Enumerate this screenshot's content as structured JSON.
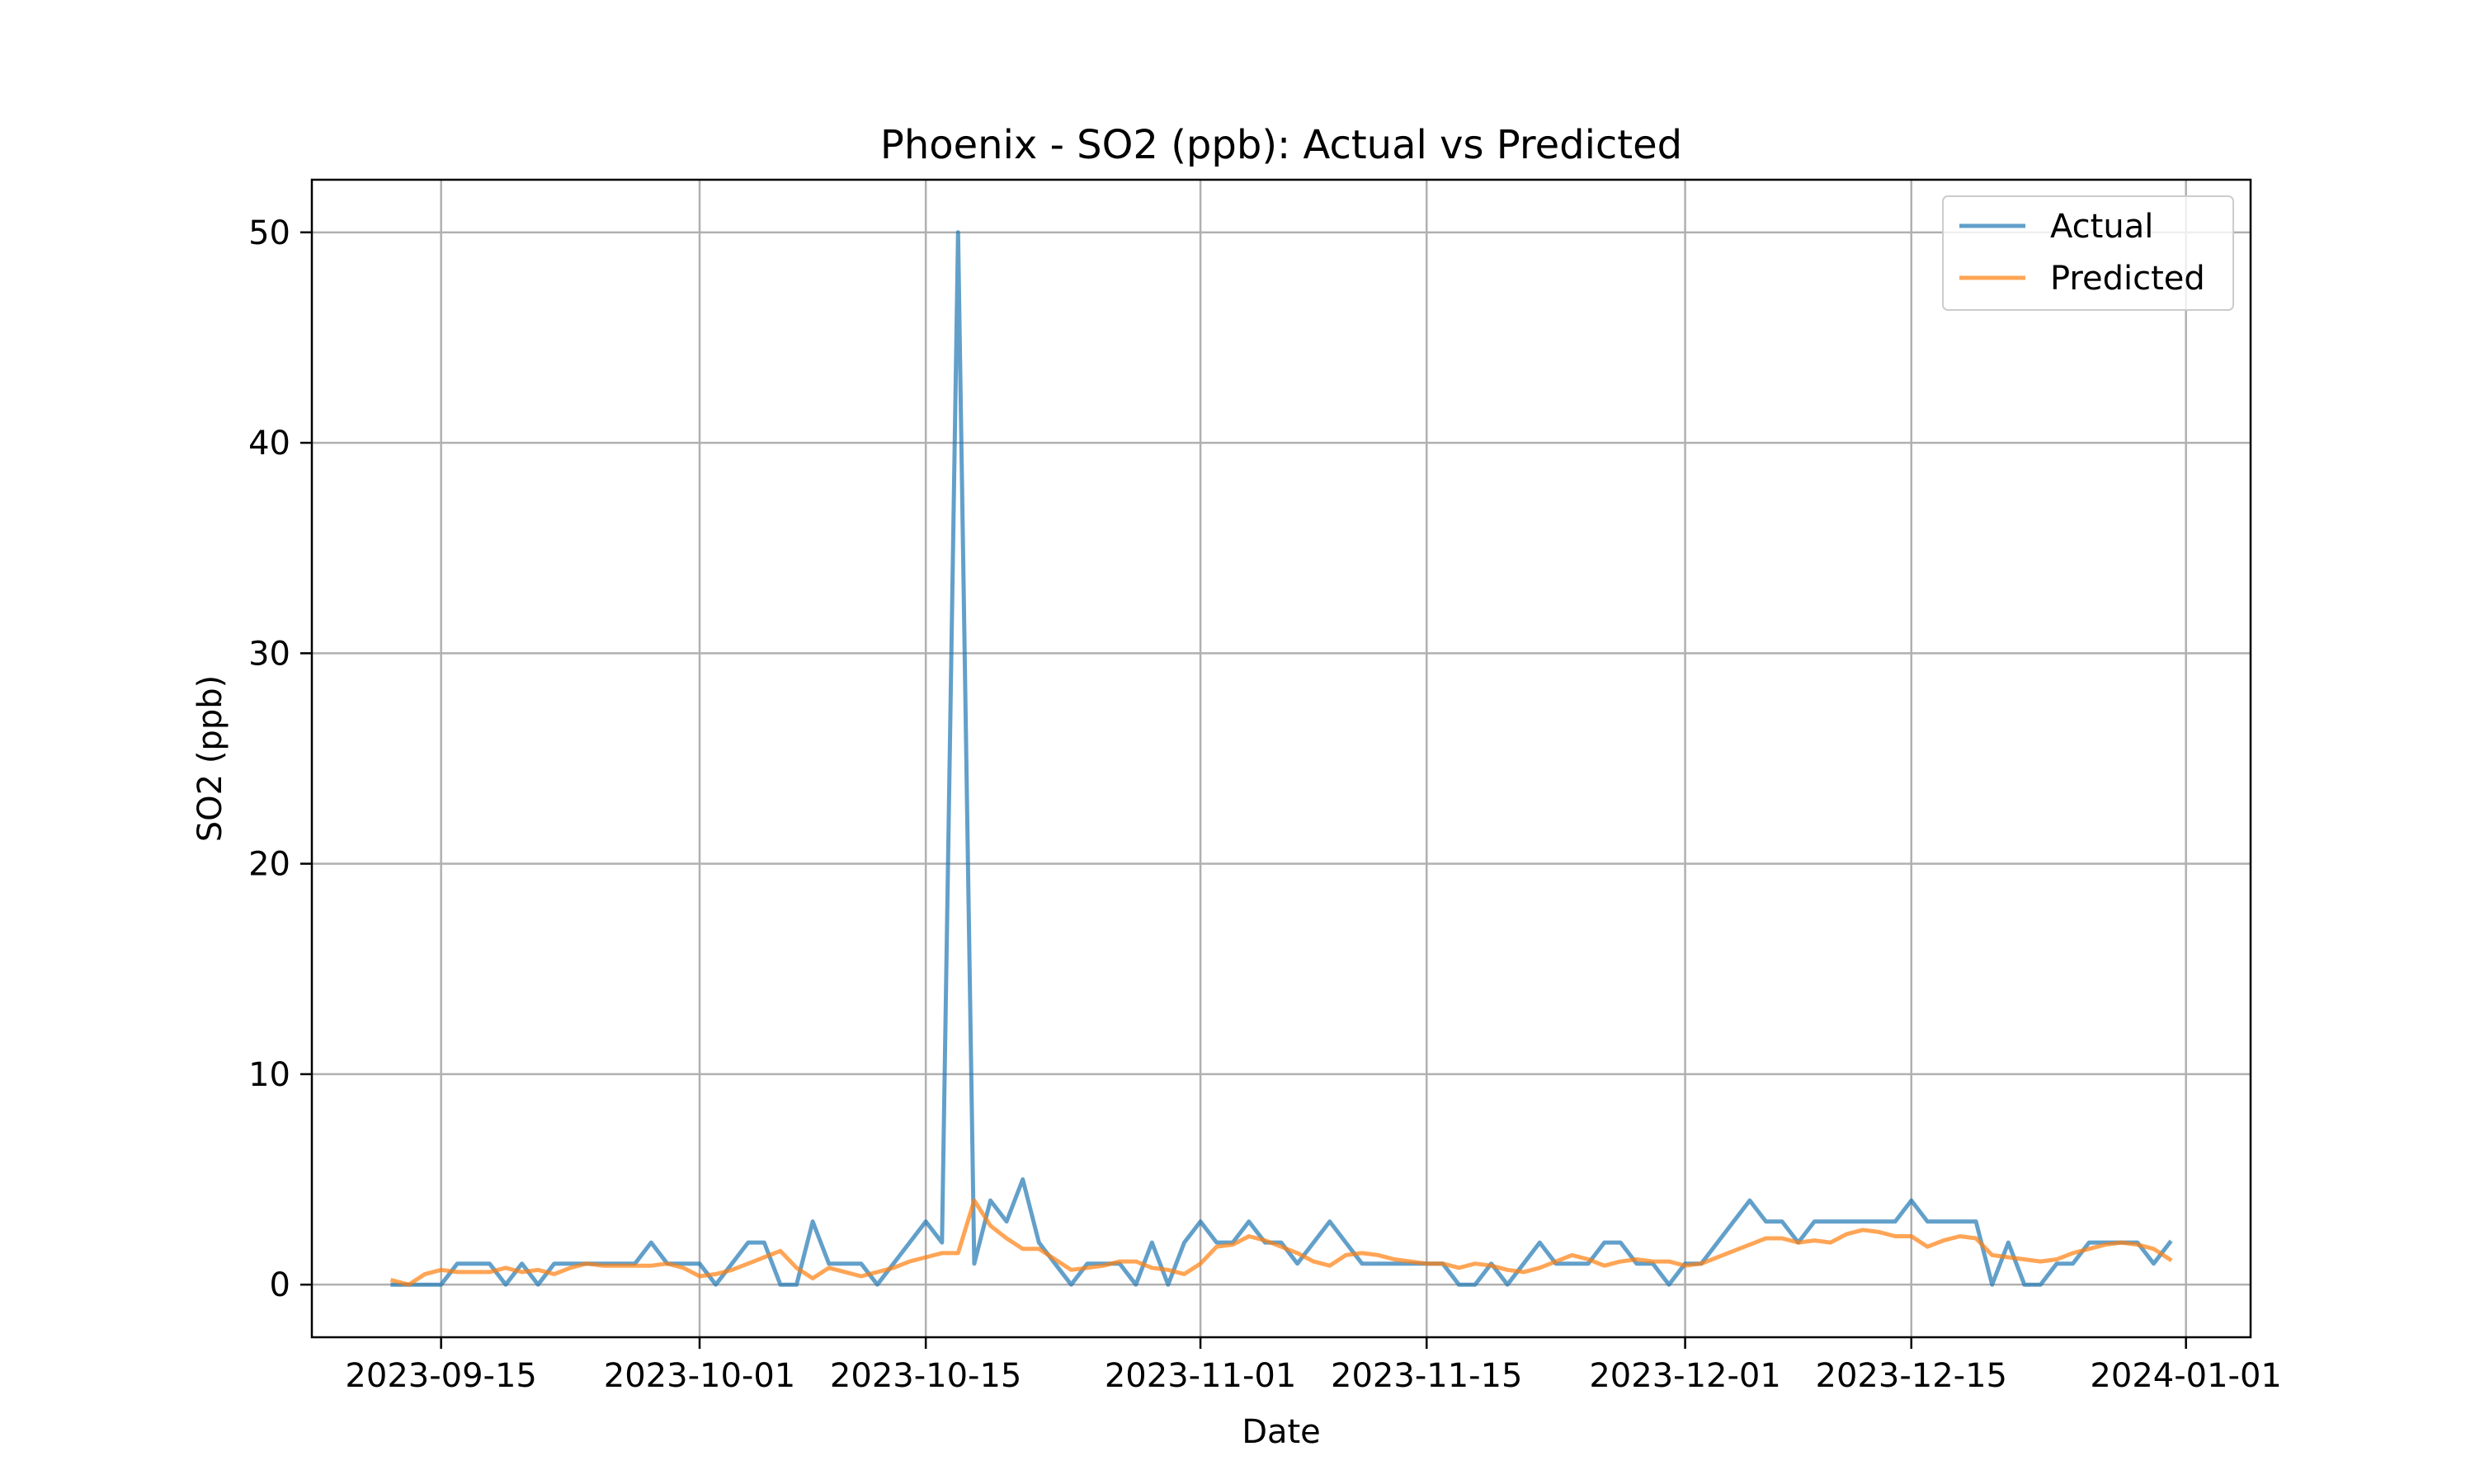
{
  "chart_data": {
    "type": "line",
    "title": "Phoenix - SO2 (ppb): Actual vs Predicted",
    "xlabel": "Date",
    "ylabel": "SO2 (ppb)",
    "x_start": "2023-09-12",
    "x_step_days": 1,
    "xlim": [
      "2023-09-07",
      "2024-01-05"
    ],
    "ylim": [
      -2.5,
      52.5
    ],
    "x_ticks": [
      "2023-09-15",
      "2023-10-01",
      "2023-10-15",
      "2023-11-01",
      "2023-11-15",
      "2023-12-01",
      "2023-12-15",
      "2024-01-01"
    ],
    "y_ticks": [
      0,
      10,
      20,
      30,
      40,
      50
    ],
    "grid": true,
    "legend_position": "top-right",
    "series": [
      {
        "name": "Actual",
        "color": "#1f77b4",
        "values": [
          0,
          0,
          0,
          0,
          1,
          1,
          1,
          0,
          1,
          0,
          1,
          1,
          1,
          1,
          1,
          1,
          2,
          1,
          1,
          1,
          0,
          1,
          2,
          2,
          0,
          0,
          3,
          1,
          1,
          1,
          0,
          1,
          2,
          3,
          2,
          50,
          1,
          4,
          3,
          5,
          2,
          1,
          0,
          1,
          1,
          1,
          0,
          2,
          0,
          2,
          3,
          2,
          2,
          3,
          2,
          2,
          1,
          2,
          3,
          2,
          1,
          1,
          1,
          1,
          1,
          1,
          0,
          0,
          1,
          0,
          1,
          2,
          1,
          1,
          1,
          2,
          2,
          1,
          1,
          0,
          1,
          1,
          2,
          3,
          4,
          3,
          3,
          2,
          3,
          3,
          3,
          3,
          3,
          3,
          4,
          3,
          3,
          3,
          3,
          0,
          2,
          0,
          0,
          1,
          1,
          2,
          2,
          2,
          2,
          1,
          2
        ]
      },
      {
        "name": "Predicted",
        "color": "#ff7f0e",
        "values": [
          0.2,
          0.0,
          0.5,
          0.7,
          0.6,
          0.6,
          0.6,
          0.8,
          0.6,
          0.7,
          0.5,
          0.8,
          1.0,
          0.9,
          0.9,
          0.9,
          0.9,
          1.0,
          0.8,
          0.4,
          0.5,
          0.7,
          1.0,
          1.3,
          1.6,
          0.8,
          0.3,
          0.8,
          0.6,
          0.4,
          0.6,
          0.8,
          1.1,
          1.3,
          1.5,
          1.5,
          4.0,
          2.8,
          2.2,
          1.7,
          1.7,
          1.2,
          0.7,
          0.8,
          0.9,
          1.1,
          1.1,
          0.8,
          0.7,
          0.5,
          1.0,
          1.8,
          1.9,
          2.3,
          2.1,
          1.8,
          1.5,
          1.1,
          0.9,
          1.4,
          1.5,
          1.4,
          1.2,
          1.1,
          1.0,
          1.0,
          0.8,
          1.0,
          0.9,
          0.7,
          0.6,
          0.8,
          1.1,
          1.4,
          1.2,
          0.9,
          1.1,
          1.2,
          1.1,
          1.1,
          0.9,
          1.0,
          1.3,
          1.6,
          1.9,
          2.2,
          2.2,
          2.0,
          2.1,
          2.0,
          2.4,
          2.6,
          2.5,
          2.3,
          2.3,
          1.8,
          2.1,
          2.3,
          2.2,
          1.4,
          1.3,
          1.2,
          1.1,
          1.2,
          1.5,
          1.7,
          1.9,
          2.0,
          1.9,
          1.7,
          1.2
        ]
      }
    ]
  }
}
